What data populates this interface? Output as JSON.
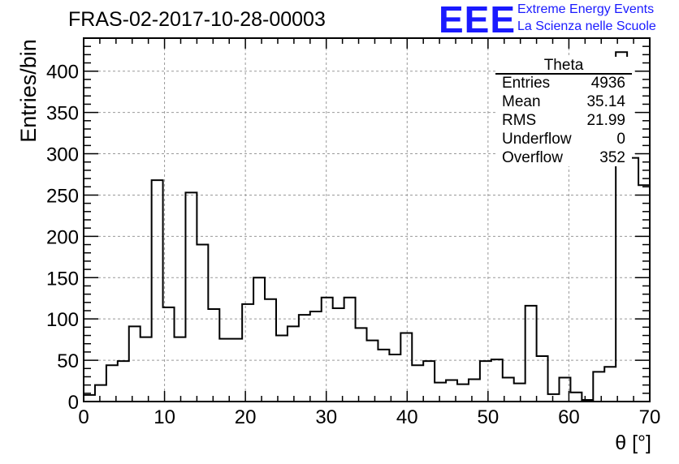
{
  "chart_data": {
    "type": "histogram",
    "title": "FRAS-02-2017-10-28-00003",
    "xlabel": "θ [°]",
    "ylabel": "Entries/bin",
    "xlim": [
      0,
      70
    ],
    "ylim": [
      0,
      440
    ],
    "bin_width": 1.4,
    "grid": true,
    "x_ticks": [
      0,
      10,
      20,
      30,
      40,
      50,
      60,
      70
    ],
    "y_ticks": [
      0,
      50,
      100,
      150,
      200,
      250,
      300,
      350,
      400
    ],
    "values": [
      8,
      20,
      44,
      49,
      91,
      78,
      268,
      114,
      78,
      253,
      190,
      112,
      76,
      76,
      118,
      150,
      124,
      80,
      91,
      105,
      109,
      126,
      113,
      126,
      89,
      74,
      63,
      57,
      83,
      44,
      49,
      23,
      26,
      21,
      27,
      49,
      51,
      29,
      22,
      116,
      55,
      9,
      29,
      11,
      2,
      36,
      42,
      423,
      295,
      262
    ],
    "stats_box": {
      "title": "Theta",
      "rows": [
        {
          "label": "Entries",
          "value": "4936"
        },
        {
          "label": "Mean",
          "value": "35.14"
        },
        {
          "label": "RMS",
          "value": "21.99"
        },
        {
          "label": "Underflow",
          "value": "0"
        },
        {
          "label": "Overflow",
          "value": "352"
        }
      ]
    }
  },
  "logo": {
    "mark": "EEE",
    "line1": "Extreme Energy Events",
    "line2": "La Scienza nelle Scuole",
    "color": "#1a1aff"
  }
}
